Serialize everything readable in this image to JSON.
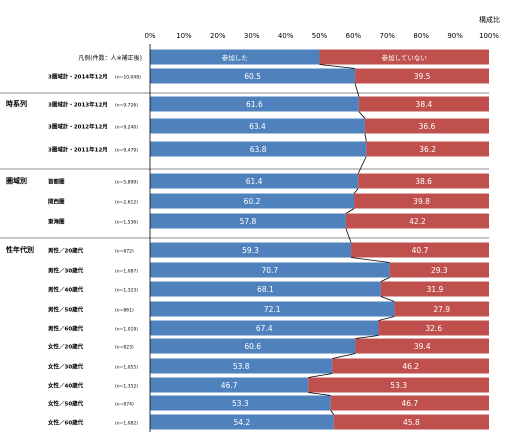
{
  "chart_data": {
    "type": "bar",
    "orientation": "horizontal",
    "stacked": true,
    "unit_label": "構成比",
    "xlim": [
      0,
      100
    ],
    "x_ticks": [
      "0%",
      "10%",
      "20%",
      "30%",
      "40%",
      "50%",
      "60%",
      "70%",
      "80%",
      "90%",
      "100%"
    ],
    "legend_row_label": "凡例(件数：人※補正後)",
    "series": [
      {
        "name": "参加した",
        "color": "#4F81BD"
      },
      {
        "name": "参加していない",
        "color": "#C0504D"
      }
    ],
    "groups": [
      {
        "label": "",
        "rows": [
          {
            "label": "3圏域計・2014年12月",
            "n": "(n=10,048)",
            "values": [
              60.5,
              39.5
            ]
          }
        ]
      },
      {
        "label": "時系列",
        "rows": [
          {
            "label": "3圏域計・2013年12月",
            "n": "(n=9,726)",
            "values": [
              61.6,
              38.4
            ]
          },
          {
            "label": "3圏域計・2012年12月",
            "n": "(n=9,240)",
            "values": [
              63.4,
              36.6
            ]
          },
          {
            "label": "3圏域計・2011年12月",
            "n": "(n=9,479)",
            "values": [
              63.8,
              36.2
            ]
          }
        ]
      },
      {
        "label": "圏域別",
        "rows": [
          {
            "label": "首都圏",
            "n": "(n=5,899)",
            "values": [
              61.4,
              38.6
            ]
          },
          {
            "label": "関西圏",
            "n": "(n=2,612)",
            "values": [
              60.2,
              39.8
            ]
          },
          {
            "label": "東海圏",
            "n": "(n=1,536)",
            "values": [
              57.8,
              42.2
            ]
          }
        ]
      },
      {
        "label": "性年代別",
        "rows": [
          {
            "label": "男性／20歳代",
            "n": "(n=872)",
            "values": [
              59.3,
              40.7
            ]
          },
          {
            "label": "男性／30歳代",
            "n": "(n=1,087)",
            "values": [
              70.7,
              29.3
            ]
          },
          {
            "label": "男性／40歳代",
            "n": "(n=1,323)",
            "values": [
              68.1,
              31.9
            ]
          },
          {
            "label": "男性／50歳代",
            "n": "(n=861)",
            "values": [
              72.1,
              27.9
            ]
          },
          {
            "label": "男性／60歳代",
            "n": "(n=1,019)",
            "values": [
              67.4,
              32.6
            ]
          },
          {
            "label": "女性／20歳代",
            "n": "(n=823)",
            "values": [
              60.6,
              39.4
            ]
          },
          {
            "label": "女性／30歳代",
            "n": "(n=1,055)",
            "values": [
              53.8,
              46.2
            ]
          },
          {
            "label": "女性／40歳代",
            "n": "(n=1,352)",
            "values": [
              46.7,
              53.3
            ]
          },
          {
            "label": "女性／50歳代",
            "n": "(n=874)",
            "values": [
              53.3,
              46.7
            ]
          },
          {
            "label": "女性／60歳代",
            "n": "(n=1,082)",
            "values": [
              54.2,
              45.8
            ]
          }
        ]
      }
    ]
  }
}
